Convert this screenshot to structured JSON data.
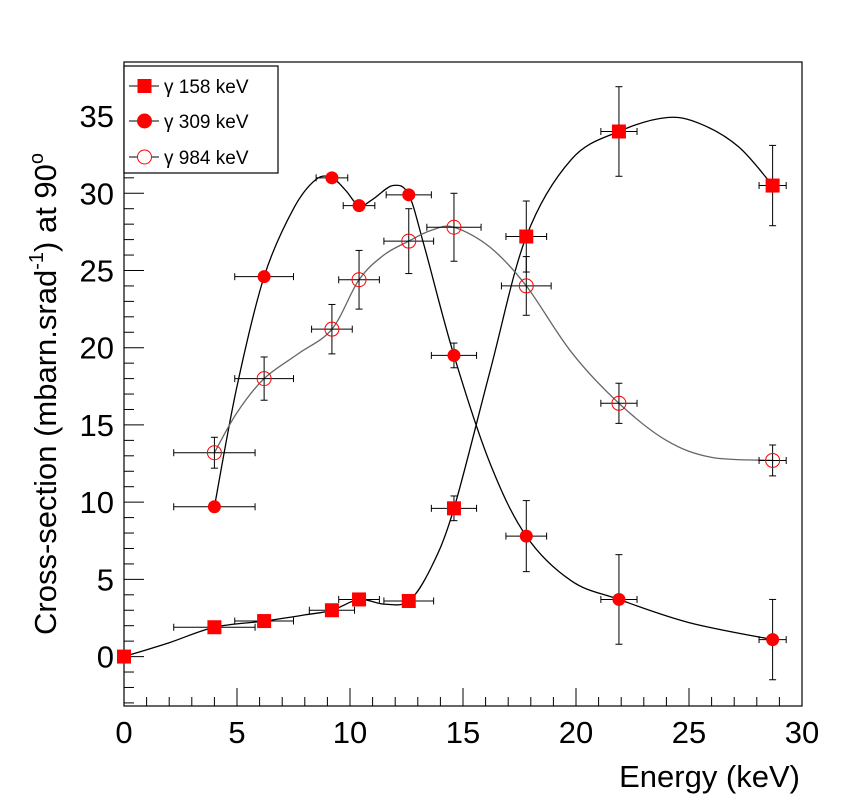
{
  "chart_data": {
    "type": "scatter",
    "title": "",
    "xlabel": "Energy (keV)",
    "ylabel_main": "Cross-section (mbarn.srad",
    "ylabel_sup": "-1",
    "ylabel_tail": ") at 90",
    "ylabel_deg": "o",
    "xlim": [
      0,
      30
    ],
    "ylim": [
      -3.2,
      38.5
    ],
    "xticks": [
      0,
      5,
      10,
      15,
      20,
      25,
      30
    ],
    "xtick_labels": [
      "0",
      "5",
      "10",
      "15",
      "20",
      "25",
      "30"
    ],
    "yticks": [
      0,
      5,
      10,
      15,
      20,
      25,
      30,
      35
    ],
    "ytick_labels": [
      "0",
      "5",
      "10",
      "15",
      "20",
      "25",
      "30",
      "35"
    ],
    "grid": false,
    "legend_position": "top-left",
    "series": [
      {
        "name": "γ 158 keV",
        "marker": "filled-square",
        "color": "#ff0000",
        "curve_color": "#000000",
        "points": [
          {
            "x": 0,
            "y": 0,
            "xerr": 0,
            "yerr": 0
          },
          {
            "x": 4.0,
            "y": 1.9,
            "xerr": 1.8,
            "yerr": 0.2
          },
          {
            "x": 6.2,
            "y": 2.3,
            "xerr": 1.3,
            "yerr": 0.2
          },
          {
            "x": 9.2,
            "y": 3.0,
            "xerr": 1.0,
            "yerr": 0.3
          },
          {
            "x": 10.4,
            "y": 3.7,
            "xerr": 0.9,
            "yerr": 0.3
          },
          {
            "x": 12.6,
            "y": 3.6,
            "xerr": 1.1,
            "yerr": 0.3
          },
          {
            "x": 14.6,
            "y": 9.6,
            "xerr": 1.0,
            "yerr": 0.8
          },
          {
            "x": 17.8,
            "y": 27.2,
            "xerr": 0.9,
            "yerr": 2.3
          },
          {
            "x": 21.9,
            "y": 34.0,
            "xerr": 0.8,
            "yerr": 2.9
          },
          {
            "x": 28.7,
            "y": 30.5,
            "xerr": 0.6,
            "yerr": 2.6
          }
        ],
        "curve": [
          [
            0,
            0
          ],
          [
            2,
            0.9
          ],
          [
            4,
            1.9
          ],
          [
            6.2,
            2.3
          ],
          [
            8,
            2.7
          ],
          [
            9.2,
            3.0
          ],
          [
            10.4,
            3.7
          ],
          [
            11.5,
            3.4
          ],
          [
            12.6,
            3.6
          ],
          [
            13.6,
            5.8
          ],
          [
            14.6,
            9.6
          ],
          [
            16.2,
            18.5
          ],
          [
            17.8,
            27.2
          ],
          [
            19.8,
            32.2
          ],
          [
            21.9,
            34.0
          ],
          [
            24,
            34.9
          ],
          [
            25.5,
            34.5
          ],
          [
            27.2,
            33.0
          ],
          [
            28.7,
            30.5
          ]
        ]
      },
      {
        "name": "γ 309 keV",
        "marker": "filled-circle",
        "color": "#ff0000",
        "curve_color": "#000000",
        "points": [
          {
            "x": 4.0,
            "y": 9.7,
            "xerr": 1.8,
            "yerr": 0.3
          },
          {
            "x": 6.2,
            "y": 24.6,
            "xerr": 1.3,
            "yerr": 0.3
          },
          {
            "x": 9.2,
            "y": 31.0,
            "xerr": 0.7,
            "yerr": 0.3
          },
          {
            "x": 10.4,
            "y": 29.2,
            "xerr": 0.7,
            "yerr": 0.3
          },
          {
            "x": 12.6,
            "y": 29.9,
            "xerr": 1.0,
            "yerr": 0.3
          },
          {
            "x": 14.6,
            "y": 19.5,
            "xerr": 1.0,
            "yerr": 0.8
          },
          {
            "x": 17.8,
            "y": 7.8,
            "xerr": 0.9,
            "yerr": 2.3
          },
          {
            "x": 21.9,
            "y": 3.7,
            "xerr": 0.8,
            "yerr": 2.9
          },
          {
            "x": 28.7,
            "y": 1.1,
            "xerr": 0.6,
            "yerr": 2.6
          }
        ],
        "curve": [
          [
            4,
            9.7
          ],
          [
            5,
            17.5
          ],
          [
            6.2,
            24.6
          ],
          [
            7.5,
            29.0
          ],
          [
            8.5,
            30.9
          ],
          [
            9.2,
            31.0
          ],
          [
            9.8,
            30.2
          ],
          [
            10.4,
            29.2
          ],
          [
            11,
            29.6
          ],
          [
            11.9,
            30.5
          ],
          [
            12.6,
            29.9
          ],
          [
            13.3,
            26.5
          ],
          [
            14.6,
            19.5
          ],
          [
            16.2,
            12.5
          ],
          [
            17.8,
            7.8
          ],
          [
            19.8,
            4.9
          ],
          [
            21.9,
            3.7
          ],
          [
            25,
            2.2
          ],
          [
            28.7,
            1.1
          ]
        ]
      },
      {
        "name": "γ 984 keV",
        "marker": "open-circle",
        "color": "#ff0000",
        "curve_color": "#666666",
        "points": [
          {
            "x": 4.0,
            "y": 13.2,
            "xerr": 1.8,
            "yerr": 1.0
          },
          {
            "x": 6.2,
            "y": 18.0,
            "xerr": 1.3,
            "yerr": 1.4
          },
          {
            "x": 9.2,
            "y": 21.2,
            "xerr": 0.9,
            "yerr": 1.6
          },
          {
            "x": 10.4,
            "y": 24.4,
            "xerr": 0.9,
            "yerr": 1.9
          },
          {
            "x": 12.6,
            "y": 26.9,
            "xerr": 1.1,
            "yerr": 2.1
          },
          {
            "x": 14.6,
            "y": 27.8,
            "xerr": 1.2,
            "yerr": 2.2
          },
          {
            "x": 17.8,
            "y": 24.0,
            "xerr": 1.1,
            "yerr": 1.9
          },
          {
            "x": 21.9,
            "y": 16.4,
            "xerr": 0.8,
            "yerr": 1.3
          },
          {
            "x": 28.7,
            "y": 12.7,
            "xerr": 0.6,
            "yerr": 1.0
          }
        ],
        "curve": [
          [
            4,
            13.2
          ],
          [
            5,
            15.8
          ],
          [
            6.2,
            18.0
          ],
          [
            7.7,
            19.6
          ],
          [
            9.2,
            21.2
          ],
          [
            10.4,
            24.4
          ],
          [
            11.5,
            26.0
          ],
          [
            12.6,
            26.9
          ],
          [
            13.6,
            27.6
          ],
          [
            14.6,
            27.8
          ],
          [
            16.2,
            26.5
          ],
          [
            17.8,
            24.0
          ],
          [
            19.8,
            19.7
          ],
          [
            21.9,
            16.4
          ],
          [
            24,
            14.0
          ],
          [
            26,
            12.9
          ],
          [
            28.7,
            12.7
          ]
        ]
      }
    ]
  }
}
